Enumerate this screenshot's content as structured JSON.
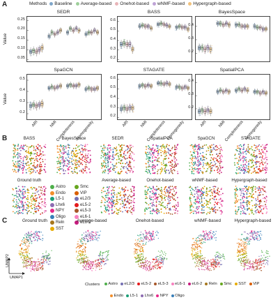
{
  "panel_letters": {
    "a": "A",
    "b": "B",
    "c": "C"
  },
  "methods_legend": {
    "title": "Methods",
    "items": [
      {
        "label": "Baseline",
        "color": "#7fa6c9"
      },
      {
        "label": "Average-based",
        "color": "#9ecf9a"
      },
      {
        "label": "Onehot-based",
        "color": "#e8b4b8"
      },
      {
        "label": "wNMF-based",
        "color": "#bfa3d6"
      },
      {
        "label": "Hypergraph-based",
        "color": "#f1c27d"
      }
    ]
  },
  "panel_a": {
    "ylabel": "Value",
    "xtick_labels": [
      "ARI",
      "NMI",
      "Completeness",
      "Homogeneity"
    ],
    "plots": [
      {
        "title": "SEDR",
        "yticks": [
          "0.25",
          "0.20",
          "0.15",
          "0.10",
          "0.05"
        ]
      },
      {
        "title": "BASS",
        "yticks": [
          "0.6",
          "0.5",
          "0.4",
          "0.3",
          "0.2"
        ]
      },
      {
        "title": "BayesSpace",
        "yticks": [
          "0.4",
          "0.3",
          "0.2"
        ]
      },
      {
        "title": "SpaGCN",
        "yticks": [
          "0.5",
          "0.4",
          "0.3",
          "0.2"
        ]
      },
      {
        "title": "STAGATE",
        "yticks": [
          "0.6",
          "0.5",
          "0.4",
          "0.3",
          "0.2"
        ]
      },
      {
        "title": "SpatialPCA",
        "yticks": [
          "0.4",
          "0.3",
          "0.2"
        ]
      }
    ]
  },
  "chart_data": {
    "type": "box",
    "title": "",
    "categories": [
      "ARI",
      "NMI",
      "Completeness",
      "Homogeneity"
    ],
    "ylabel": "Value",
    "panels": [
      {
        "name": "SEDR",
        "ylim": [
          0.04,
          0.27
        ],
        "series": [
          {
            "name": "Baseline",
            "medians": [
              0.09,
              0.17,
              0.19,
              0.18
            ]
          },
          {
            "name": "Average-based",
            "medians": [
              0.095,
              0.19,
              0.21,
              0.19
            ]
          },
          {
            "name": "Onehot-based",
            "medians": [
              0.09,
              0.18,
              0.2,
              0.19
            ]
          },
          {
            "name": "wNMF-based",
            "medians": [
              0.1,
              0.19,
              0.21,
              0.2
            ]
          },
          {
            "name": "Hypergraph-based",
            "medians": [
              0.11,
              0.2,
              0.2,
              0.19
            ]
          }
        ]
      },
      {
        "name": "BASS",
        "ylim": [
          0.18,
          0.65
        ],
        "series": [
          {
            "name": "Baseline",
            "medians": [
              0.36,
              0.55,
              0.57,
              0.54
            ]
          },
          {
            "name": "Average-based",
            "medians": [
              0.37,
              0.56,
              0.58,
              0.55
            ]
          },
          {
            "name": "Onehot-based",
            "medians": [
              0.36,
              0.55,
              0.57,
              0.54
            ]
          },
          {
            "name": "wNMF-based",
            "medians": [
              0.36,
              0.55,
              0.56,
              0.54
            ]
          },
          {
            "name": "Hypergraph-based",
            "medians": [
              0.31,
              0.53,
              0.55,
              0.52
            ]
          }
        ]
      },
      {
        "name": "BayesSpace",
        "ylim": [
          0.14,
          0.47
        ],
        "series": [
          {
            "name": "Baseline",
            "medians": [
              0.24,
              0.42,
              0.41,
              0.4
            ]
          },
          {
            "name": "Average-based",
            "medians": [
              0.24,
              0.42,
              0.41,
              0.39
            ]
          },
          {
            "name": "Onehot-based",
            "medians": [
              0.23,
              0.41,
              0.4,
              0.39
            ]
          },
          {
            "name": "wNMF-based",
            "medians": [
              0.24,
              0.42,
              0.4,
              0.38
            ]
          },
          {
            "name": "Hypergraph-based",
            "medians": [
              0.23,
              0.41,
              0.4,
              0.38
            ]
          }
        ]
      },
      {
        "name": "SpaGCN",
        "ylim": [
          0.15,
          0.55
        ],
        "series": [
          {
            "name": "Baseline",
            "medians": [
              0.27,
              0.43,
              0.45,
              0.42
            ]
          },
          {
            "name": "Average-based",
            "medians": [
              0.28,
              0.44,
              0.46,
              0.43
            ]
          },
          {
            "name": "Onehot-based",
            "medians": [
              0.27,
              0.43,
              0.45,
              0.42
            ]
          },
          {
            "name": "wNMF-based",
            "medians": [
              0.28,
              0.44,
              0.45,
              0.42
            ]
          },
          {
            "name": "Hypergraph-based",
            "medians": [
              0.29,
              0.45,
              0.46,
              0.43
            ]
          }
        ]
      },
      {
        "name": "STAGATE",
        "ylim": [
          0.18,
          0.65
        ],
        "series": [
          {
            "name": "Baseline",
            "medians": [
              0.29,
              0.53,
              0.56,
              0.52
            ]
          },
          {
            "name": "Average-based",
            "medians": [
              0.3,
              0.54,
              0.56,
              0.52
            ]
          },
          {
            "name": "Onehot-based",
            "medians": [
              0.29,
              0.53,
              0.55,
              0.51
            ]
          },
          {
            "name": "wNMF-based",
            "medians": [
              0.3,
              0.54,
              0.56,
              0.52
            ]
          },
          {
            "name": "Hypergraph-based",
            "medians": [
              0.3,
              0.53,
              0.55,
              0.51
            ]
          }
        ]
      },
      {
        "name": "SpatialPCA",
        "ylim": [
          0.12,
          0.46
        ],
        "series": [
          {
            "name": "Baseline",
            "medians": [
              0.18,
              0.33,
              0.34,
              0.33
            ]
          },
          {
            "name": "Average-based",
            "medians": [
              0.19,
              0.34,
              0.35,
              0.33
            ]
          },
          {
            "name": "Onehot-based",
            "medians": [
              0.18,
              0.33,
              0.34,
              0.32
            ]
          },
          {
            "name": "wNMF-based",
            "medians": [
              0.19,
              0.34,
              0.35,
              0.33
            ]
          },
          {
            "name": "Hypergraph-based",
            "medians": [
              0.18,
              0.33,
              0.34,
              0.32
            ]
          }
        ]
      }
    ]
  },
  "panel_b": {
    "top_titles": [
      "BASS",
      "BayesSpace",
      "SEDR",
      "SpatialPCA",
      "SpaGCN",
      "STAGATE"
    ],
    "gt_title": "Ground truth",
    "bottom_titles": [
      "Average-based",
      "Onehot-based",
      "wNMF-based",
      "Hypergraph-based"
    ],
    "celltypes_col1": [
      {
        "label": "Astro",
        "color": "#4daf4a"
      },
      {
        "label": "Endo",
        "color": "#f28e2b"
      },
      {
        "label": "L5-1",
        "color": "#1b9e77"
      },
      {
        "label": "Lhx6",
        "color": "#8c6bb1"
      },
      {
        "label": "NPY",
        "color": "#e7298a"
      },
      {
        "label": "Oligo",
        "color": "#377eb8"
      },
      {
        "label": "Reln",
        "color": "#a6761d"
      },
      {
        "label": "SST",
        "color": "#e6ab02"
      }
    ],
    "celltypes_col2": [
      {
        "label": "Smc",
        "color": "#66a61e"
      },
      {
        "label": "VIP",
        "color": "#d95f02"
      },
      {
        "label": "eL2/3",
        "color": "#7570b3"
      },
      {
        "label": "eL5-2",
        "color": "#e41a1c"
      },
      {
        "label": "eL5-3",
        "color": "#a65628"
      },
      {
        "label": "eL6-1",
        "color": "#f781bf"
      },
      {
        "label": "eL6-2",
        "color": "#c51b7d"
      }
    ]
  },
  "panel_c": {
    "titles": [
      "Ground truth",
      "Average-based",
      "Onehot-based",
      "wNMF-based",
      "Hypergraph-based"
    ],
    "umap1": "UMAP1",
    "umap2": "UMAP2",
    "clusters_label": "Clusters",
    "clusters_row1": [
      {
        "label": "Astro",
        "color": "#4daf4a"
      },
      {
        "label": "eL2/3",
        "color": "#7570b3"
      },
      {
        "label": "eL5-2",
        "color": "#e41a1c"
      },
      {
        "label": "eL5-3",
        "color": "#a65628"
      },
      {
        "label": "eL6-1",
        "color": "#f781bf"
      },
      {
        "label": "eL6-2",
        "color": "#c51b7d"
      },
      {
        "label": "Reln",
        "color": "#a6761d"
      },
      {
        "label": "Smc",
        "color": "#66a61e"
      },
      {
        "label": "SST",
        "color": "#e6ab02"
      },
      {
        "label": "VIP",
        "color": "#d95f02"
      }
    ],
    "clusters_row2": [
      {
        "label": "Endo",
        "color": "#f28e2b"
      },
      {
        "label": "L5-1",
        "color": "#1b9e77"
      },
      {
        "label": "Lhx6",
        "color": "#8c6bb1"
      },
      {
        "label": "NPY",
        "color": "#e7298a"
      },
      {
        "label": "Oligo",
        "color": "#377eb8"
      }
    ]
  }
}
